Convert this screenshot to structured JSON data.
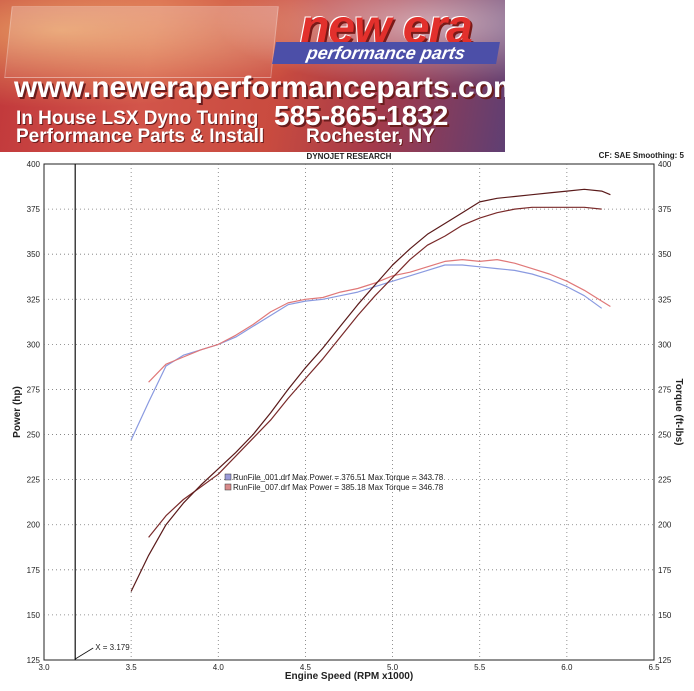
{
  "banner": {
    "brand_name": "new era",
    "tagline": "performance parts",
    "website": "www.neweraperformanceparts.com",
    "line1": "In House LSX Dyno Tuning",
    "line2": "Performance Parts & Install",
    "phone": "585-865-1832",
    "location": "Rochester, NY"
  },
  "chart_data": {
    "type": "line",
    "title": "DYNOJET RESEARCH",
    "settings": "CF: SAE  Smoothing: 5",
    "xlabel": "Engine Speed (RPM x1000)",
    "ylabel_left": "Power (hp)",
    "ylabel_right": "Torque (ft-lbs)",
    "xlim": [
      3.0,
      6.5
    ],
    "ylim_left": [
      125,
      400
    ],
    "ylim_right": [
      125,
      400
    ],
    "x_ticks": [
      "3.0",
      "3.5",
      "4.0",
      "4.5",
      "5.0",
      "5.5",
      "6.0",
      "6.5"
    ],
    "y_ticks_left": [
      "125",
      "150",
      "175",
      "200",
      "225",
      "250",
      "275",
      "300",
      "325",
      "350",
      "375",
      "400"
    ],
    "y_ticks_right": [
      "125",
      "150",
      "175",
      "200",
      "225",
      "250",
      "275",
      "300",
      "325",
      "350",
      "375",
      "400"
    ],
    "grid": true,
    "cursor": {
      "x": 3.179,
      "label": "X = 3.179"
    },
    "legend": [
      {
        "text": "RunFile_001.drf Max Power = 376.51    Max Torque = 343.78",
        "color": "#9a9ad8"
      },
      {
        "text": "RunFile_007.drf Max Power = 385.18    Max Torque = 346.78",
        "color": "#d88a8a"
      }
    ],
    "series": [
      {
        "role": "torque_001",
        "color": "#8a9ae0",
        "x": [
          3.5,
          3.6,
          3.7,
          3.8,
          3.9,
          4.0,
          4.1,
          4.2,
          4.3,
          4.4,
          4.5,
          4.6,
          4.7,
          4.8,
          4.9,
          5.0,
          5.1,
          5.2,
          5.3,
          5.4,
          5.5,
          5.6,
          5.7,
          5.8,
          5.9,
          6.0,
          6.1,
          6.2
        ],
        "y": [
          247,
          268,
          288,
          294,
          297,
          300,
          304,
          310,
          316,
          322,
          324,
          325,
          327,
          329,
          332,
          335,
          338,
          341,
          344,
          344,
          343,
          342,
          341,
          339,
          336,
          332,
          327,
          320
        ]
      },
      {
        "role": "torque_007",
        "color": "#e07878",
        "x": [
          3.6,
          3.7,
          3.8,
          3.9,
          4.0,
          4.1,
          4.2,
          4.3,
          4.4,
          4.5,
          4.6,
          4.7,
          4.8,
          4.9,
          5.0,
          5.1,
          5.2,
          5.3,
          5.4,
          5.5,
          5.6,
          5.7,
          5.8,
          5.9,
          6.0,
          6.1,
          6.2,
          6.25
        ],
        "y": [
          279,
          289,
          293,
          297,
          300,
          305,
          311,
          318,
          323,
          325,
          326,
          329,
          331,
          334,
          338,
          340,
          343,
          346,
          347,
          346,
          347,
          345,
          342,
          339,
          335,
          330,
          324,
          321
        ]
      },
      {
        "role": "power_001",
        "color": "#7a2a2a",
        "x": [
          3.6,
          3.7,
          3.8,
          3.9,
          4.0,
          4.1,
          4.2,
          4.3,
          4.4,
          4.5,
          4.6,
          4.7,
          4.8,
          4.9,
          5.0,
          5.1,
          5.2,
          5.3,
          5.4,
          5.5,
          5.6,
          5.7,
          5.8,
          5.9,
          6.0,
          6.1,
          6.2
        ],
        "y": [
          193,
          205,
          214,
          221,
          228,
          238,
          248,
          258,
          270,
          281,
          292,
          304,
          316,
          327,
          337,
          347,
          355,
          360,
          366,
          370,
          373,
          375,
          376,
          376,
          376,
          376,
          375
        ]
      },
      {
        "role": "power_007",
        "color": "#5a1a1a",
        "x": [
          3.5,
          3.6,
          3.7,
          3.8,
          3.9,
          4.0,
          4.1,
          4.2,
          4.3,
          4.4,
          4.5,
          4.6,
          4.7,
          4.8,
          4.9,
          5.0,
          5.1,
          5.2,
          5.3,
          5.4,
          5.5,
          5.6,
          5.7,
          5.8,
          5.9,
          6.0,
          6.1,
          6.2,
          6.25
        ],
        "y": [
          163,
          183,
          200,
          212,
          222,
          231,
          240,
          250,
          262,
          275,
          287,
          298,
          310,
          322,
          333,
          344,
          353,
          361,
          367,
          373,
          379,
          381,
          382,
          383,
          384,
          385,
          386,
          385,
          383
        ]
      }
    ]
  }
}
